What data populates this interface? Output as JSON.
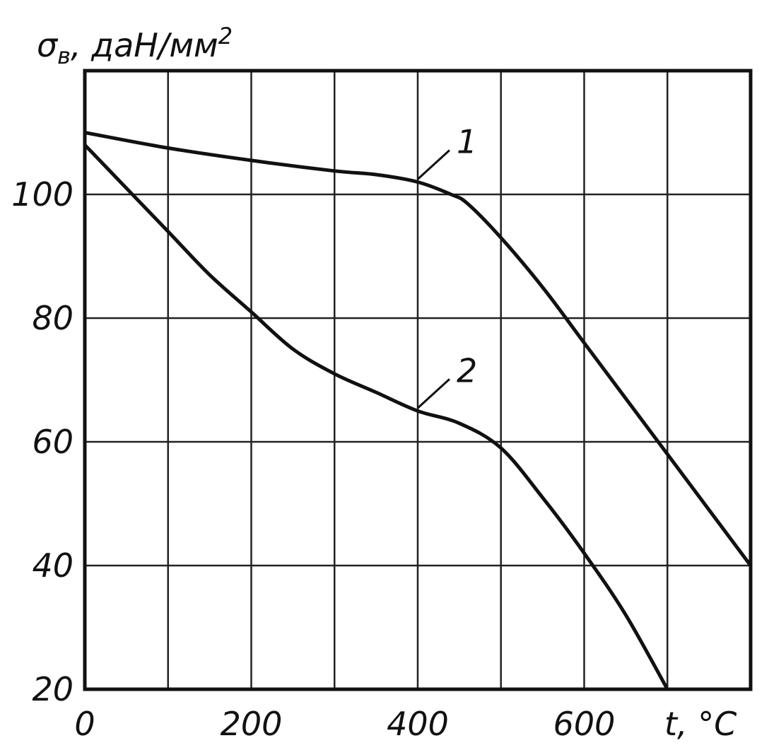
{
  "chart_data": {
    "type": "line",
    "ylabel": "σв, даН/мм²",
    "ylabel_main": "σ",
    "ylabel_sub": "в",
    "ylabel_unit": ", даН/мм",
    "ylabel_sup": "2",
    "xlabel": "t, °C",
    "xlim": [
      0,
      800
    ],
    "ylim": [
      20,
      120
    ],
    "xticks": [
      "0",
      "200",
      "400",
      "600"
    ],
    "yticks": [
      "20",
      "40",
      "60",
      "80",
      "100"
    ],
    "grid": true,
    "series": [
      {
        "name": "1",
        "x": [
          0,
          100,
          200,
          300,
          350,
          400,
          440,
          460,
          500,
          550,
          600,
          700,
          800
        ],
        "y": [
          110,
          107.5,
          105.5,
          103.8,
          103.2,
          102,
          100,
          98.5,
          93,
          85,
          76,
          58,
          40
        ]
      },
      {
        "name": "2",
        "x": [
          0,
          50,
          100,
          150,
          200,
          250,
          300,
          350,
          400,
          450,
          500,
          550,
          600,
          650,
          700
        ],
        "y": [
          108,
          101,
          94,
          87,
          81,
          75,
          71,
          68,
          65,
          63,
          59,
          51,
          42,
          32,
          20
        ]
      }
    ]
  }
}
